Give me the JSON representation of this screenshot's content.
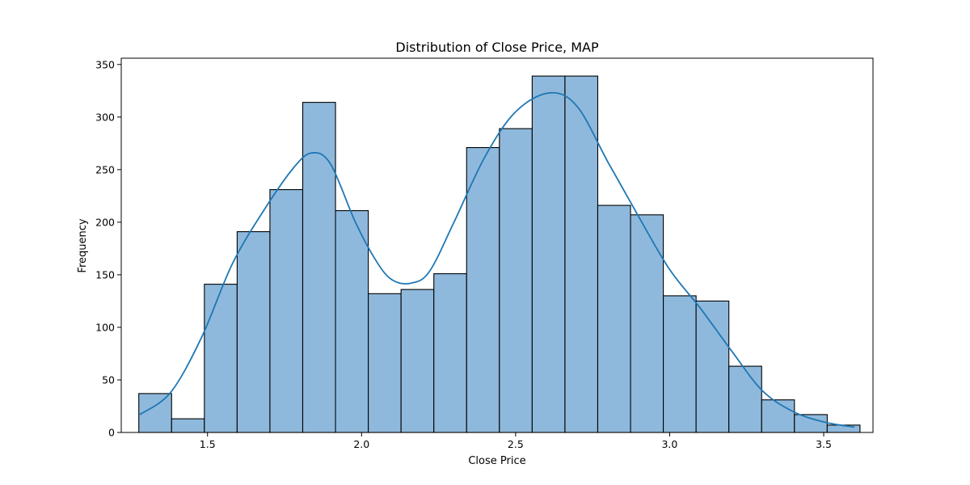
{
  "chart_data": {
    "type": "bar",
    "title": "Distribution of Close Price, MAP",
    "xlabel": "Close Price",
    "ylabel": "Frequency",
    "xlim": [
      1.22,
      3.66
    ],
    "ylim": [
      0,
      356
    ],
    "grid": false,
    "legend": "none",
    "bar_color": "#8fb9dc",
    "edge_color": "#000000",
    "kde_color": "#1f77b4",
    "bins": {
      "edges": [
        1.277,
        1.3834,
        1.4898,
        1.5962,
        1.7026,
        1.809,
        1.9154,
        2.0218,
        2.1282,
        2.2346,
        2.341,
        2.4474,
        2.5538,
        2.6602,
        2.7666,
        2.873,
        2.9794,
        3.0858,
        3.1922,
        3.2986,
        3.405,
        3.5114
      ],
      "counts": [
        37,
        13,
        141,
        191,
        231,
        314,
        211,
        132,
        136,
        151,
        271,
        289,
        339,
        339,
        216,
        207,
        130,
        125,
        63,
        31,
        17,
        7
      ]
    },
    "kde": {
      "x": [
        1.28,
        1.38,
        1.48,
        1.58,
        1.68,
        1.78,
        1.84,
        1.9,
        1.98,
        2.05,
        2.1,
        2.16,
        2.22,
        2.3,
        2.4,
        2.5,
        2.61,
        2.7,
        2.8,
        2.9,
        3.0,
        3.1,
        3.2,
        3.3,
        3.4,
        3.5,
        3.6
      ],
      "y": [
        17,
        38,
        90,
        160,
        210,
        252,
        266,
        255,
        200,
        162,
        145,
        142,
        153,
        200,
        262,
        305,
        323,
        310,
        257,
        205,
        155,
        118,
        78,
        40,
        20,
        10,
        5
      ]
    },
    "xticks": [
      1.5,
      2.0,
      2.5,
      3.0,
      3.5
    ],
    "xtick_labels": [
      "1.5",
      "2.0",
      "2.5",
      "3.0",
      "3.5"
    ],
    "yticks": [
      0,
      50,
      100,
      150,
      200,
      250,
      300,
      350
    ],
    "ytick_labels": [
      "0",
      "50",
      "100",
      "150",
      "200",
      "250",
      "300",
      "350"
    ]
  }
}
